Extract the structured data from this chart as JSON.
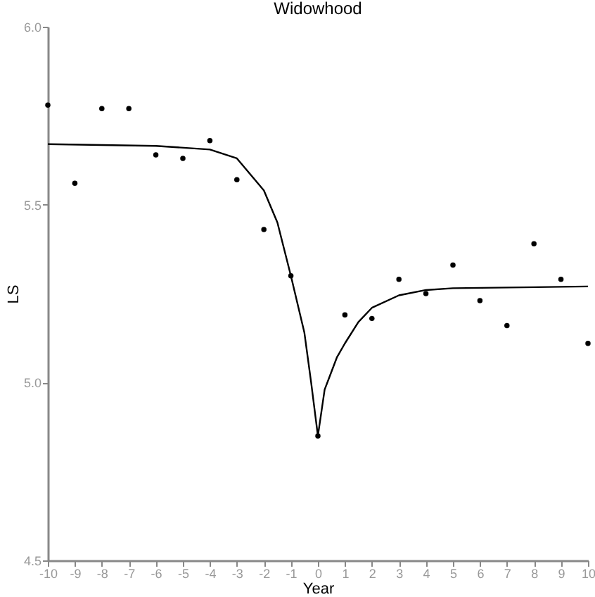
{
  "chart_data": {
    "type": "scatter",
    "title": "Widowhood",
    "xlabel": "Year",
    "ylabel": "LS",
    "xlim": [
      -10,
      10
    ],
    "xticks": [
      -10,
      -9,
      -8,
      -7,
      -6,
      -5,
      -4,
      -3,
      -2,
      -1,
      0,
      1,
      2,
      3,
      4,
      5,
      6,
      7,
      8,
      9,
      10
    ],
    "ylim": [
      4.5,
      6.0
    ],
    "yticks": [
      {
        "value": 4.5,
        "label": "4.5"
      },
      {
        "value": 5.0,
        "label": "5.0"
      },
      {
        "value": 5.5,
        "label": "5.5"
      },
      {
        "value": 6.0,
        "label": "6.0"
      }
    ],
    "grid": false,
    "marker": "circle",
    "series": [
      {
        "color": "#000000",
        "x": [
          -10,
          -9,
          -8,
          -7,
          -6,
          -5,
          -4,
          -3,
          -2,
          -1,
          0,
          1,
          2,
          3,
          4,
          5,
          6,
          7,
          8,
          9,
          10
        ],
        "values": [
          5.78,
          5.56,
          5.77,
          5.77,
          5.64,
          5.63,
          5.68,
          5.57,
          5.43,
          5.3,
          4.85,
          5.19,
          5.18,
          5.29,
          5.25,
          5.33,
          5.23,
          5.16,
          5.39,
          5.29,
          5.11
        ]
      },
      {
        "type": "line",
        "color": "#000000",
        "marker": "none",
        "line_style": "solid",
        "x": [
          -10,
          -6,
          -4,
          -3,
          -2,
          -1.5,
          -1,
          -0.5,
          -0.25,
          0,
          0.25,
          0.45,
          0.7,
          1,
          1.5,
          2,
          3,
          4,
          5,
          10
        ],
        "values": [
          5.67,
          5.665,
          5.655,
          5.63,
          5.54,
          5.45,
          5.3,
          5.14,
          5.0,
          4.85,
          4.98,
          5.02,
          5.07,
          5.11,
          5.17,
          5.21,
          5.245,
          5.26,
          5.265,
          5.27
        ]
      }
    ]
  }
}
